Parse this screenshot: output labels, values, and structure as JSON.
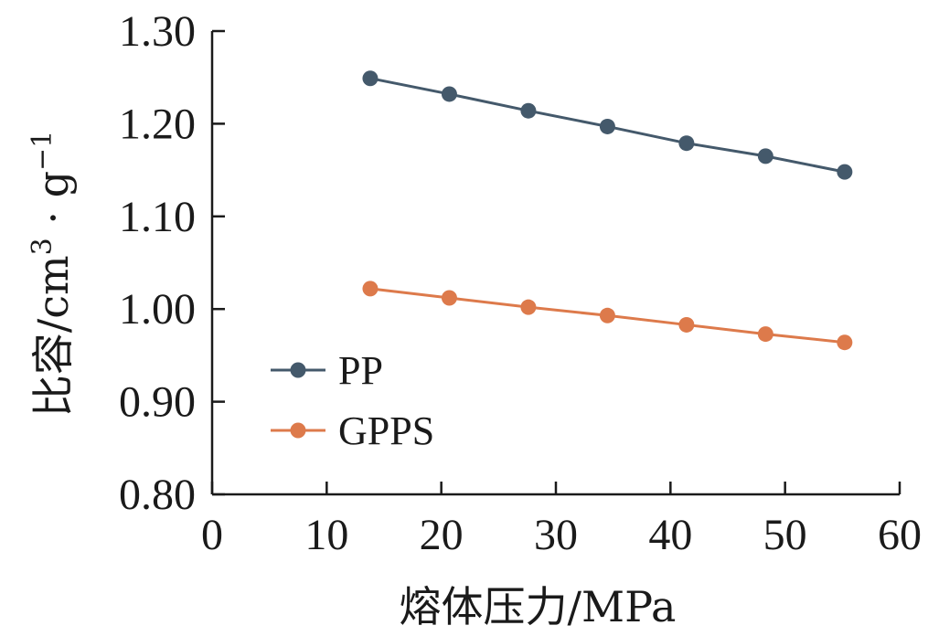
{
  "chart_data": {
    "type": "line",
    "xlabel": "熔体压力/MPa",
    "ylabel": {
      "base": "比容/cm",
      "sup1": "3",
      "mid": " · g",
      "sup2": "−1"
    },
    "xlim": [
      0,
      60
    ],
    "ylim": [
      0.8,
      1.3
    ],
    "xticks": [
      "0",
      "10",
      "20",
      "30",
      "40",
      "50",
      "60"
    ],
    "yticks": [
      "0.80",
      "0.90",
      "1.00",
      "1.10",
      "1.20",
      "1.30"
    ],
    "grid": false,
    "legend_position": "bottom-left",
    "series": [
      {
        "name": "PP",
        "color": "#44596b",
        "x": [
          13.8,
          20.7,
          27.6,
          34.5,
          41.4,
          48.3,
          55.2
        ],
        "y": [
          1.249,
          1.232,
          1.214,
          1.197,
          1.179,
          1.165,
          1.148
        ]
      },
      {
        "name": "GPPS",
        "color": "#dd7a4b",
        "x": [
          13.8,
          20.7,
          27.6,
          34.5,
          41.4,
          48.3,
          55.2
        ],
        "y": [
          1.022,
          1.012,
          1.002,
          0.993,
          0.983,
          0.973,
          0.964
        ]
      }
    ]
  }
}
